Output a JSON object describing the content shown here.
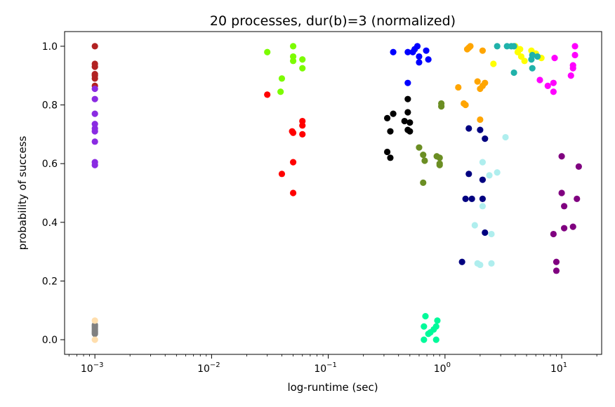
{
  "chart_data": {
    "type": "scatter",
    "title": "20 processes, dur(b)=3 (normalized)",
    "xlabel": "log-runtime (sec)",
    "ylabel": "probability of success",
    "xscale": "log",
    "xlim": [
      0.00055,
      22
    ],
    "ylim": [
      -0.05,
      1.05
    ],
    "grid": false,
    "xticks": [
      {
        "value": 0.001,
        "base": "10",
        "exp": "−3"
      },
      {
        "value": 0.01,
        "base": "10",
        "exp": "−2"
      },
      {
        "value": 0.1,
        "base": "10",
        "exp": "−1"
      },
      {
        "value": 1,
        "base": "10",
        "exp": "0"
      },
      {
        "value": 10,
        "base": "10",
        "exp": "1"
      }
    ],
    "yticks": [
      {
        "value": 0.0,
        "label": "0.0"
      },
      {
        "value": 0.2,
        "label": "0.2"
      },
      {
        "value": 0.4,
        "label": "0.4"
      },
      {
        "value": 0.6,
        "label": "0.6"
      },
      {
        "value": 0.8,
        "label": "0.8"
      },
      {
        "value": 1.0,
        "label": "1.0"
      }
    ],
    "series": [
      {
        "name": "brown",
        "color": "#b22222",
        "points": [
          [
            0.001,
            1.0
          ],
          [
            0.001,
            0.94
          ],
          [
            0.001,
            0.93
          ],
          [
            0.001,
            0.905
          ],
          [
            0.001,
            0.9
          ],
          [
            0.001,
            0.89
          ],
          [
            0.001,
            0.865
          ]
        ]
      },
      {
        "name": "purple",
        "color": "#8a2be2",
        "points": [
          [
            0.001,
            0.855
          ],
          [
            0.001,
            0.82
          ],
          [
            0.001,
            0.77
          ],
          [
            0.001,
            0.735
          ],
          [
            0.001,
            0.72
          ],
          [
            0.001,
            0.71
          ],
          [
            0.001,
            0.675
          ],
          [
            0.001,
            0.605
          ],
          [
            0.001,
            0.595
          ]
        ]
      },
      {
        "name": "gray",
        "color": "#808080",
        "points": [
          [
            0.001,
            0.05
          ],
          [
            0.001,
            0.045
          ],
          [
            0.001,
            0.04
          ],
          [
            0.001,
            0.035
          ],
          [
            0.001,
            0.03
          ],
          [
            0.001,
            0.025
          ],
          [
            0.001,
            0.02
          ]
        ]
      },
      {
        "name": "wheat",
        "color": "#ffdead",
        "points": [
          [
            0.001,
            0.065
          ],
          [
            0.001,
            0.0
          ]
        ]
      },
      {
        "name": "lawngreen",
        "color": "#7cfc00",
        "points": [
          [
            0.03,
            0.98
          ],
          [
            0.05,
            1.0
          ],
          [
            0.05,
            0.965
          ],
          [
            0.05,
            0.95
          ],
          [
            0.06,
            0.955
          ],
          [
            0.06,
            0.925
          ],
          [
            0.04,
            0.89
          ],
          [
            0.039,
            0.845
          ]
        ]
      },
      {
        "name": "red",
        "color": "#ff0000",
        "points": [
          [
            0.03,
            0.835
          ],
          [
            0.06,
            0.745
          ],
          [
            0.06,
            0.73
          ],
          [
            0.049,
            0.71
          ],
          [
            0.05,
            0.705
          ],
          [
            0.06,
            0.7
          ],
          [
            0.05,
            0.605
          ],
          [
            0.04,
            0.565
          ],
          [
            0.05,
            0.5
          ]
        ]
      },
      {
        "name": "black",
        "color": "#000000",
        "points": [
          [
            0.48,
            0.82
          ],
          [
            0.36,
            0.77
          ],
          [
            0.48,
            0.775
          ],
          [
            0.32,
            0.755
          ],
          [
            0.45,
            0.745
          ],
          [
            0.5,
            0.74
          ],
          [
            0.48,
            0.715
          ],
          [
            0.5,
            0.71
          ],
          [
            0.34,
            0.71
          ],
          [
            0.32,
            0.64
          ],
          [
            0.34,
            0.62
          ]
        ]
      },
      {
        "name": "blue",
        "color": "#0000ff",
        "points": [
          [
            0.36,
            0.98
          ],
          [
            0.48,
            0.98
          ],
          [
            0.53,
            0.98
          ],
          [
            0.55,
            0.99
          ],
          [
            0.58,
            1.0
          ],
          [
            0.69,
            0.985
          ],
          [
            0.6,
            0.965
          ],
          [
            0.6,
            0.945
          ],
          [
            0.72,
            0.955
          ],
          [
            0.48,
            0.875
          ]
        ]
      },
      {
        "name": "olive",
        "color": "#6b8e23",
        "points": [
          [
            0.93,
            0.805
          ],
          [
            0.93,
            0.795
          ],
          [
            0.6,
            0.655
          ],
          [
            0.65,
            0.63
          ],
          [
            0.67,
            0.61
          ],
          [
            0.85,
            0.625
          ],
          [
            0.9,
            0.62
          ],
          [
            0.9,
            0.595
          ],
          [
            0.9,
            0.6
          ],
          [
            0.65,
            0.535
          ]
        ]
      },
      {
        "name": "springgreen",
        "color": "#00fa9a",
        "points": [
          [
            0.68,
            0.08
          ],
          [
            0.86,
            0.065
          ],
          [
            0.66,
            0.045
          ],
          [
            0.84,
            0.045
          ],
          [
            0.75,
            0.025
          ],
          [
            0.8,
            0.035
          ],
          [
            0.72,
            0.02
          ],
          [
            0.66,
            0.0
          ],
          [
            0.84,
            0.0
          ]
        ]
      },
      {
        "name": "orange",
        "color": "#ffa500",
        "points": [
          [
            1.6,
            0.995
          ],
          [
            1.65,
            1.0
          ],
          [
            1.55,
            0.99
          ],
          [
            2.1,
            0.985
          ],
          [
            1.3,
            0.86
          ],
          [
            1.9,
            0.88
          ],
          [
            2.2,
            0.875
          ],
          [
            2.0,
            0.855
          ],
          [
            2.1,
            0.865
          ],
          [
            1.45,
            0.805
          ],
          [
            1.5,
            0.8
          ],
          [
            2.0,
            0.75
          ]
        ]
      },
      {
        "name": "navy",
        "color": "#000080",
        "points": [
          [
            1.6,
            0.72
          ],
          [
            2.0,
            0.715
          ],
          [
            2.2,
            0.685
          ],
          [
            1.6,
            0.565
          ],
          [
            2.1,
            0.545
          ],
          [
            1.5,
            0.48
          ],
          [
            1.7,
            0.48
          ],
          [
            2.1,
            0.48
          ],
          [
            2.2,
            0.365
          ],
          [
            1.4,
            0.265
          ]
        ]
      },
      {
        "name": "paleturquoise",
        "color": "#afeeee",
        "points": [
          [
            3.3,
            0.69
          ],
          [
            2.1,
            0.605
          ],
          [
            2.8,
            0.57
          ],
          [
            2.4,
            0.56
          ],
          [
            2.1,
            0.455
          ],
          [
            1.8,
            0.39
          ],
          [
            2.5,
            0.36
          ],
          [
            1.9,
            0.26
          ],
          [
            2.0,
            0.255
          ],
          [
            2.5,
            0.26
          ]
        ]
      },
      {
        "name": "yellow",
        "color": "#ffff00",
        "points": [
          [
            2.6,
            0.94
          ],
          [
            4.0,
            1.0
          ],
          [
            4.2,
            0.98
          ],
          [
            4.4,
            0.99
          ],
          [
            5.5,
            0.985
          ],
          [
            6.0,
            0.975
          ],
          [
            4.5,
            0.965
          ],
          [
            6.7,
            0.96
          ],
          [
            4.8,
            0.95
          ]
        ]
      },
      {
        "name": "teal",
        "color": "#20b2aa",
        "points": [
          [
            2.8,
            1.0
          ],
          [
            3.4,
            1.0
          ],
          [
            3.7,
            1.0
          ],
          [
            3.9,
            1.0
          ],
          [
            5.6,
            0.97
          ],
          [
            5.5,
            0.955
          ],
          [
            6.2,
            0.965
          ],
          [
            5.6,
            0.925
          ],
          [
            3.9,
            0.91
          ]
        ]
      },
      {
        "name": "magenta",
        "color": "#ff00ff",
        "points": [
          [
            13.0,
            1.0
          ],
          [
            13.0,
            0.97
          ],
          [
            8.7,
            0.96
          ],
          [
            12.5,
            0.935
          ],
          [
            12.5,
            0.925
          ],
          [
            12.0,
            0.9
          ],
          [
            6.5,
            0.885
          ],
          [
            7.6,
            0.865
          ],
          [
            8.5,
            0.875
          ],
          [
            8.5,
            0.845
          ]
        ]
      },
      {
        "name": "darkmagenta",
        "color": "#800080",
        "points": [
          [
            10.0,
            0.625
          ],
          [
            14.0,
            0.59
          ],
          [
            10.0,
            0.5
          ],
          [
            13.5,
            0.48
          ],
          [
            10.5,
            0.455
          ],
          [
            10.5,
            0.38
          ],
          [
            12.5,
            0.385
          ],
          [
            8.5,
            0.36
          ],
          [
            9.0,
            0.265
          ],
          [
            9.0,
            0.235
          ]
        ]
      }
    ]
  }
}
